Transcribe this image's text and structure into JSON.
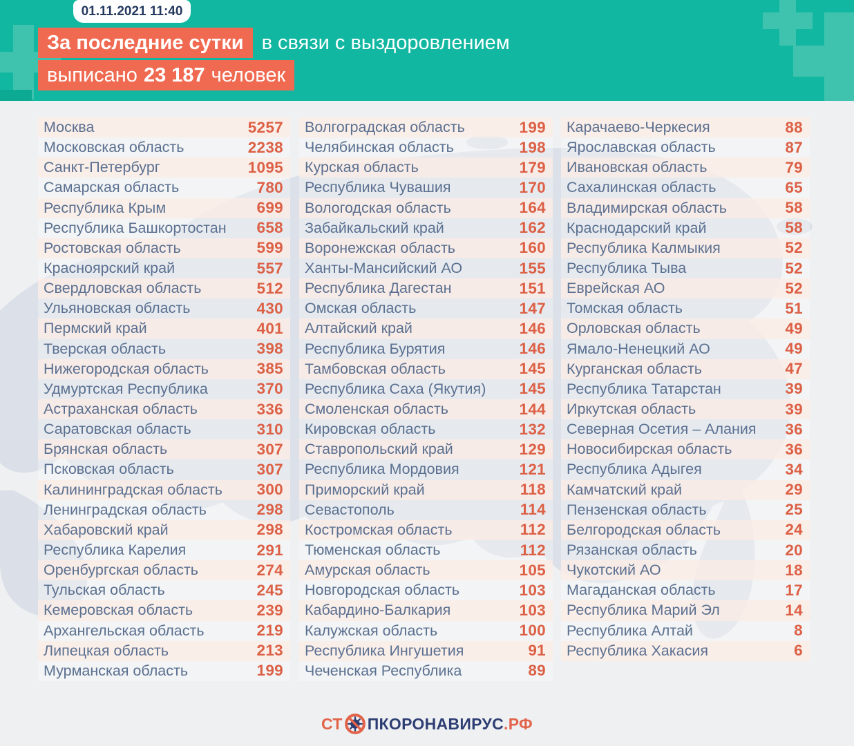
{
  "header": {
    "datetime": "01.11.2021 11:40",
    "line1_highlight": "За последние сутки",
    "line1_rest": "в связи с выздоровлением",
    "line2_prefix": "выписано",
    "line2_number": "23 187",
    "line2_suffix": "человек"
  },
  "footer": {
    "logo_start": "СТ",
    "logo_middle": "ПКОРОНАВИРУС",
    "logo_end": ".РФ",
    "logo_icon": "no-virus-icon"
  },
  "colors": {
    "teal_bg": "#12b7a1",
    "teal_plus": "#3fc3ae",
    "highlight_orange": "#ef6a50",
    "value_orange": "#dc6045",
    "region_text": "#5b7090",
    "navy_text": "#24395e",
    "footer_navy": "#2d3e73",
    "page_bg": "#eff0f2",
    "map_fill": "#ccd4e1",
    "stripe_pink": "#fcede7"
  },
  "chart_data": {
    "type": "table",
    "title": "За последние сутки в связи с выздоровлением выписано 23 187 человек",
    "as_of": "01.11.2021 11:40",
    "total_discharged": 23187,
    "layout_column_sizes": [
      28,
      28,
      27
    ],
    "rows": [
      [
        "Москва",
        5257
      ],
      [
        "Московская область",
        2238
      ],
      [
        "Санкт-Петербург",
        1095
      ],
      [
        "Самарская область",
        780
      ],
      [
        "Республика Крым",
        699
      ],
      [
        "Республика Башкортостан",
        658
      ],
      [
        "Ростовская область",
        599
      ],
      [
        "Красноярский край",
        557
      ],
      [
        "Свердловская область",
        512
      ],
      [
        "Ульяновская область",
        430
      ],
      [
        "Пермский край",
        401
      ],
      [
        "Тверская область",
        398
      ],
      [
        "Нижегородская область",
        385
      ],
      [
        "Удмуртская Республика",
        370
      ],
      [
        "Астраханская область",
        336
      ],
      [
        "Саратовская область",
        310
      ],
      [
        "Брянская область",
        307
      ],
      [
        "Псковская область",
        307
      ],
      [
        "Калининградская область",
        300
      ],
      [
        "Ленинградская область",
        298
      ],
      [
        "Хабаровский край",
        298
      ],
      [
        "Республика Карелия",
        291
      ],
      [
        "Оренбургская область",
        274
      ],
      [
        "Тульская область",
        245
      ],
      [
        "Кемеровская область",
        239
      ],
      [
        "Архангельская область",
        219
      ],
      [
        "Липецкая область",
        213
      ],
      [
        "Мурманская область",
        199
      ],
      [
        "Волгоградская область",
        199
      ],
      [
        "Челябинская область",
        198
      ],
      [
        "Курская область",
        179
      ],
      [
        "Республика Чувашия",
        170
      ],
      [
        "Вологодская область",
        164
      ],
      [
        "Забайкальский край",
        162
      ],
      [
        "Воронежская область",
        160
      ],
      [
        "Ханты-Мансийский АО",
        155
      ],
      [
        "Республика Дагестан",
        151
      ],
      [
        "Омская область",
        147
      ],
      [
        "Алтайский край",
        146
      ],
      [
        "Республика Бурятия",
        146
      ],
      [
        "Тамбовская область",
        145
      ],
      [
        "Республика Саха (Якутия)",
        145
      ],
      [
        "Смоленская область",
        144
      ],
      [
        "Кировская область",
        132
      ],
      [
        "Ставропольский край",
        129
      ],
      [
        "Республика Мордовия",
        121
      ],
      [
        "Приморский край",
        118
      ],
      [
        "Севастополь",
        114
      ],
      [
        "Костромская область",
        112
      ],
      [
        "Тюменская область",
        112
      ],
      [
        "Амурская область",
        105
      ],
      [
        "Новгородская область",
        103
      ],
      [
        "Кабардино-Балкария",
        103
      ],
      [
        "Калужская область",
        100
      ],
      [
        "Республика Ингушетия",
        91
      ],
      [
        "Чеченская Республика",
        89
      ],
      [
        "Карачаево-Черкесия",
        88
      ],
      [
        "Ярославская область",
        87
      ],
      [
        "Ивановская область",
        79
      ],
      [
        "Сахалинская область",
        65
      ],
      [
        "Владимирская область",
        58
      ],
      [
        "Краснодарский край",
        58
      ],
      [
        "Республика Калмыкия",
        52
      ],
      [
        "Республика Тыва",
        52
      ],
      [
        "Еврейская АО",
        52
      ],
      [
        "Томская область",
        51
      ],
      [
        "Орловская область",
        49
      ],
      [
        "Ямало-Ненецкий АО",
        49
      ],
      [
        "Курганская область",
        47
      ],
      [
        "Республика Татарстан",
        39
      ],
      [
        "Иркутская область",
        39
      ],
      [
        "Северная Осетия – Алания",
        36
      ],
      [
        "Новосибирская область",
        36
      ],
      [
        "Республика Адыгея",
        34
      ],
      [
        "Камчатский край",
        29
      ],
      [
        "Пензенская область",
        25
      ],
      [
        "Белгородская область",
        24
      ],
      [
        "Рязанская область",
        20
      ],
      [
        "Чукотский АО",
        18
      ],
      [
        "Магаданская область",
        17
      ],
      [
        "Республика Марий Эл",
        14
      ],
      [
        "Республика Алтай",
        8
      ],
      [
        "Республика Хакасия",
        6
      ]
    ]
  }
}
